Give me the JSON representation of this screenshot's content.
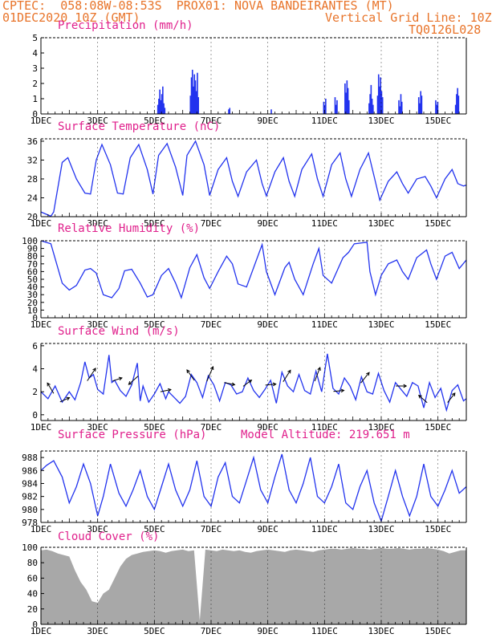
{
  "header": {
    "line1_left": "CPTEC:  058:08W-08:53S  PROX01: NOVA BANDEIRANTES (MT)",
    "line2_left": "01DEC2020 10Z (GMT)",
    "line2_right": "Vertical Grid Line: 10Z",
    "line3_right": "TQ0126L028"
  },
  "x_tick_labels": [
    "1DEC",
    "3DEC",
    "5DEC",
    "7DEC",
    "9DEC",
    "11DEC",
    "13DEC",
    "15DEC"
  ],
  "colors": {
    "header": "#e8742a",
    "title": "#e0208c",
    "line": "#2233ee",
    "cloud": "#a8a8a8"
  },
  "chart_data": [
    {
      "type": "bar",
      "title": "Precipitation (mm/h)",
      "xlabel": "",
      "ylabel": "",
      "x_range_days": [
        1,
        16
      ],
      "ylim": [
        0,
        5
      ],
      "yticks": [
        0,
        1,
        2,
        3,
        4,
        5
      ],
      "events": [
        {
          "day": 5.1,
          "values": [
            0.6,
            1.0,
            1.6,
            0.9,
            1.3,
            1.8,
            0.7,
            0.4
          ]
        },
        {
          "day": 6.25,
          "values": [
            1.2,
            2.4,
            2.9,
            1.8,
            2.6,
            2.2,
            1.5,
            2.7,
            1.1
          ]
        },
        {
          "day": 7.6,
          "values": [
            0.3,
            0.4
          ]
        },
        {
          "day": 9.1,
          "values": [
            0.3
          ]
        },
        {
          "day": 10.95,
          "values": [
            0.8,
            0.6,
            1.0
          ]
        },
        {
          "day": 11.35,
          "values": [
            1.1,
            0.6,
            0.9
          ]
        },
        {
          "day": 11.7,
          "values": [
            2.0,
            1.4,
            2.2,
            1.7,
            0.9
          ]
        },
        {
          "day": 12.55,
          "values": [
            0.7,
            1.3,
            1.9,
            1.0,
            0.6
          ]
        },
        {
          "day": 12.85,
          "values": [
            1.2,
            2.6,
            1.8,
            2.4,
            1.5,
            1.1
          ]
        },
        {
          "day": 13.6,
          "values": [
            0.9,
            0.5,
            1.3,
            0.8
          ]
        },
        {
          "day": 14.3,
          "values": [
            1.1,
            0.7,
            1.5,
            1.2
          ]
        },
        {
          "day": 14.9,
          "values": [
            0.9,
            0.6,
            0.8
          ]
        },
        {
          "day": 15.6,
          "values": [
            0.6,
            1.3,
            1.7,
            1.2
          ]
        }
      ]
    },
    {
      "type": "line",
      "title": "Surface Temperature (nC)",
      "xlabel": "",
      "ylabel": "",
      "ylim": [
        20,
        36.5
      ],
      "yticks": [
        20,
        24,
        28,
        32,
        36
      ],
      "x": [
        1.0,
        1.35,
        1.45,
        1.75,
        1.95,
        2.25,
        2.55,
        2.75,
        2.95,
        3.15,
        3.45,
        3.7,
        3.9,
        4.15,
        4.45,
        4.75,
        4.95,
        5.15,
        5.45,
        5.75,
        6.0,
        6.15,
        6.45,
        6.75,
        6.95,
        7.25,
        7.55,
        7.75,
        7.95,
        8.25,
        8.6,
        8.8,
        8.95,
        9.25,
        9.55,
        9.75,
        9.95,
        10.2,
        10.55,
        10.75,
        10.95,
        11.25,
        11.55,
        11.75,
        11.95,
        12.25,
        12.55,
        12.75,
        12.95,
        13.25,
        13.55,
        13.75,
        13.95,
        14.25,
        14.55,
        14.75,
        14.95,
        15.25,
        15.5,
        15.7,
        15.9,
        16.0
      ],
      "y": [
        21.0,
        20.1,
        21.0,
        31.5,
        32.5,
        28.0,
        25.0,
        24.8,
        32.0,
        35.3,
        31.0,
        25.0,
        24.8,
        32.5,
        35.3,
        30.0,
        24.8,
        33.0,
        35.5,
        30.5,
        24.5,
        33.0,
        36.0,
        31.0,
        24.5,
        30.0,
        32.5,
        27.5,
        24.3,
        29.5,
        32.0,
        27.0,
        24.4,
        29.5,
        32.5,
        27.5,
        24.3,
        30.0,
        33.3,
        28.0,
        24.3,
        31.0,
        33.5,
        28.0,
        24.3,
        30.0,
        33.5,
        28.5,
        23.5,
        27.5,
        29.5,
        27.0,
        25.0,
        28.0,
        28.5,
        26.5,
        24.0,
        28.0,
        30.0,
        27.0,
        26.5,
        26.7
      ]
    },
    {
      "type": "line",
      "title": "Relative Humidity (%)",
      "xlabel": "",
      "ylabel": "",
      "ylim": [
        0,
        100
      ],
      "yticks": [
        0,
        10,
        20,
        30,
        40,
        50,
        60,
        70,
        80,
        90,
        100
      ],
      "x": [
        1.0,
        1.35,
        1.75,
        2.0,
        2.25,
        2.55,
        2.75,
        2.95,
        3.2,
        3.5,
        3.75,
        3.95,
        4.2,
        4.5,
        4.75,
        4.95,
        5.25,
        5.5,
        5.75,
        5.95,
        6.25,
        6.5,
        6.75,
        6.95,
        7.25,
        7.55,
        7.75,
        7.95,
        8.25,
        8.6,
        8.8,
        8.95,
        9.25,
        9.6,
        9.75,
        9.95,
        10.25,
        10.6,
        10.8,
        10.95,
        11.25,
        11.65,
        11.85,
        12.05,
        12.5,
        12.6,
        12.8,
        13.0,
        13.25,
        13.55,
        13.75,
        13.95,
        14.25,
        14.6,
        14.75,
        14.95,
        15.25,
        15.5,
        15.75,
        16.0
      ],
      "y": [
        100,
        96,
        45,
        36,
        42,
        62,
        64,
        58,
        30,
        26,
        38,
        61,
        63,
        45,
        27,
        30,
        55,
        64,
        45,
        26,
        65,
        82,
        52,
        38,
        60,
        80,
        70,
        44,
        40,
        75,
        95,
        60,
        30,
        65,
        72,
        50,
        30,
        70,
        90,
        55,
        45,
        78,
        85,
        96,
        98,
        60,
        30,
        55,
        70,
        75,
        60,
        50,
        78,
        88,
        70,
        50,
        80,
        85,
        64,
        75
      ]
    },
    {
      "type": "line",
      "title": "Surface Wind (m/s)",
      "xlabel": "",
      "ylabel": "",
      "ylim": [
        -0.5,
        6.2
      ],
      "yticks": [
        0,
        2,
        4,
        6
      ],
      "x": [
        1.0,
        1.25,
        1.5,
        1.75,
        2.0,
        2.2,
        2.4,
        2.55,
        2.7,
        2.85,
        3.0,
        3.2,
        3.4,
        3.5,
        3.6,
        3.8,
        4.0,
        4.2,
        4.4,
        4.5,
        4.6,
        4.8,
        5.0,
        5.2,
        5.4,
        5.5,
        5.7,
        5.9,
        6.1,
        6.3,
        6.5,
        6.7,
        6.9,
        7.1,
        7.3,
        7.5,
        7.7,
        7.9,
        8.1,
        8.3,
        8.5,
        8.7,
        8.9,
        9.1,
        9.3,
        9.5,
        9.7,
        9.9,
        10.1,
        10.3,
        10.5,
        10.7,
        10.9,
        11.1,
        11.3,
        11.5,
        11.7,
        11.9,
        12.1,
        12.3,
        12.5,
        12.7,
        12.9,
        13.1,
        13.3,
        13.5,
        13.7,
        13.9,
        14.1,
        14.3,
        14.5,
        14.7,
        14.9,
        15.1,
        15.3,
        15.5,
        15.7,
        15.9,
        16.0
      ],
      "y": [
        2.0,
        1.4,
        2.5,
        1.1,
        2.0,
        1.3,
        2.8,
        4.6,
        3.2,
        3.5,
        2.2,
        1.8,
        5.2,
        2.8,
        3.0,
        2.1,
        1.6,
        2.6,
        4.5,
        1.2,
        2.5,
        1.1,
        1.8,
        2.7,
        1.4,
        2.0,
        1.5,
        1.0,
        1.6,
        3.5,
        2.8,
        1.5,
        3.4,
        2.6,
        1.2,
        2.8,
        2.6,
        1.8,
        2.0,
        3.2,
        2.1,
        1.5,
        2.2,
        3.0,
        1.0,
        3.7,
        2.5,
        2.0,
        3.5,
        2.1,
        1.8,
        3.8,
        2.0,
        5.3,
        2.3,
        1.8,
        3.2,
        2.5,
        1.3,
        3.3,
        2.0,
        1.8,
        3.6,
        2.1,
        1.1,
        2.8,
        2.2,
        1.6,
        2.8,
        2.5,
        0.6,
        2.8,
        1.5,
        2.3,
        0.4,
        2.1,
        2.6,
        1.2,
        1.4
      ],
      "arrows": [
        {
          "day": 1.4,
          "u": -0.6,
          "v": 1.0
        },
        {
          "day": 1.75,
          "u": 0.9,
          "v": 0.4
        },
        {
          "day": 2.7,
          "u": 0.8,
          "v": 1.2
        },
        {
          "day": 3.6,
          "u": 0.9,
          "v": 0.3
        },
        {
          "day": 4.35,
          "u": -0.9,
          "v": -0.8
        },
        {
          "day": 5.3,
          "u": 1.0,
          "v": 0.2
        },
        {
          "day": 6.35,
          "u": -0.7,
          "v": 1.0
        },
        {
          "day": 6.9,
          "u": 0.6,
          "v": 1.4
        },
        {
          "day": 7.55,
          "u": 1.0,
          "v": -0.2
        },
        {
          "day": 8.2,
          "u": 0.8,
          "v": 0.6
        },
        {
          "day": 9.0,
          "u": 1.0,
          "v": 0.1
        },
        {
          "day": 9.6,
          "u": 0.7,
          "v": 1.1
        },
        {
          "day": 10.7,
          "u": 0.5,
          "v": 1.3
        },
        {
          "day": 11.4,
          "u": 1.0,
          "v": 0.1
        },
        {
          "day": 12.35,
          "u": 0.8,
          "v": 1.0
        },
        {
          "day": 13.6,
          "u": 1.0,
          "v": 0.0
        },
        {
          "day": 14.55,
          "u": -0.8,
          "v": 0.7
        },
        {
          "day": 15.4,
          "u": 0.7,
          "v": 0.9
        }
      ]
    },
    {
      "type": "line",
      "title": "Surface Pressure (hPa)",
      "annotation": "Model Altitude: 219.651 m",
      "xlabel": "",
      "ylabel": "",
      "ylim": [
        978,
        989
      ],
      "yticks": [
        978,
        980,
        982,
        984,
        986,
        988
      ],
      "x": [
        1.0,
        1.2,
        1.45,
        1.75,
        2.0,
        2.25,
        2.5,
        2.75,
        3.0,
        3.2,
        3.45,
        3.75,
        4.0,
        4.25,
        4.5,
        4.75,
        5.0,
        5.25,
        5.5,
        5.75,
        6.0,
        6.25,
        6.5,
        6.75,
        7.0,
        7.25,
        7.5,
        7.75,
        8.0,
        8.25,
        8.5,
        8.75,
        9.0,
        9.25,
        9.5,
        9.75,
        10.0,
        10.25,
        10.5,
        10.75,
        11.0,
        11.25,
        11.5,
        11.75,
        12.0,
        12.25,
        12.5,
        12.75,
        13.0,
        13.25,
        13.5,
        13.75,
        14.0,
        14.25,
        14.5,
        14.75,
        15.0,
        15.25,
        15.5,
        15.75,
        16.0
      ],
      "y": [
        986.0,
        986.8,
        987.5,
        985.0,
        981.0,
        983.5,
        987.0,
        984.0,
        979.0,
        982.0,
        987.0,
        982.5,
        980.5,
        983.0,
        986.0,
        982.0,
        980.0,
        983.5,
        987.0,
        983.0,
        980.5,
        983.0,
        987.5,
        982.0,
        980.5,
        985.0,
        987.2,
        982.0,
        981.0,
        984.5,
        988.0,
        983.0,
        981.0,
        985.0,
        988.5,
        983.0,
        981.0,
        984.0,
        988.0,
        982.0,
        981.0,
        983.5,
        987.0,
        981.0,
        980.0,
        983.5,
        986.0,
        981.0,
        978.2,
        982.0,
        986.0,
        982.0,
        979.0,
        982.0,
        987.0,
        982.0,
        980.5,
        983.0,
        986.0,
        982.5,
        983.5
      ]
    },
    {
      "type": "area",
      "title": "Cloud Cover (%)",
      "xlabel": "",
      "ylabel": "",
      "ylim": [
        0,
        100
      ],
      "yticks": [
        0,
        20,
        40,
        60,
        80,
        100
      ],
      "x": [
        1.0,
        1.2,
        1.4,
        1.6,
        1.8,
        2.0,
        2.2,
        2.4,
        2.6,
        2.8,
        3.0,
        3.2,
        3.4,
        3.6,
        3.8,
        4.0,
        4.2,
        4.4,
        4.6,
        4.8,
        5.0,
        5.2,
        5.4,
        5.6,
        5.8,
        6.0,
        6.2,
        6.4,
        6.6,
        6.8,
        7.0,
        7.2,
        7.4,
        7.6,
        7.8,
        8.0,
        8.2,
        8.4,
        8.6,
        8.8,
        9.0,
        9.2,
        9.4,
        9.6,
        9.8,
        10.0,
        10.2,
        10.4,
        10.6,
        10.8,
        11.0,
        11.2,
        11.4,
        11.6,
        11.8,
        12.0,
        12.2,
        12.4,
        12.6,
        12.8,
        13.0,
        13.2,
        13.4,
        13.6,
        13.8,
        14.0,
        14.2,
        14.4,
        14.6,
        14.8,
        15.0,
        15.2,
        15.4,
        15.6,
        15.8,
        16.0
      ],
      "y": [
        96,
        97,
        95,
        92,
        90,
        88,
        70,
        55,
        45,
        30,
        28,
        40,
        45,
        60,
        75,
        85,
        90,
        92,
        94,
        95,
        96,
        95,
        93,
        95,
        96,
        97,
        95,
        96,
        5,
        97,
        96,
        95,
        97,
        96,
        95,
        96,
        94,
        93,
        95,
        96,
        97,
        96,
        95,
        94,
        96,
        97,
        96,
        95,
        94,
        96,
        97,
        98,
        98,
        97,
        98,
        99,
        98,
        98,
        97,
        98,
        99,
        98,
        98,
        99,
        98,
        97,
        98,
        98,
        99,
        98,
        97,
        95,
        92,
        94,
        96,
        96
      ]
    }
  ]
}
